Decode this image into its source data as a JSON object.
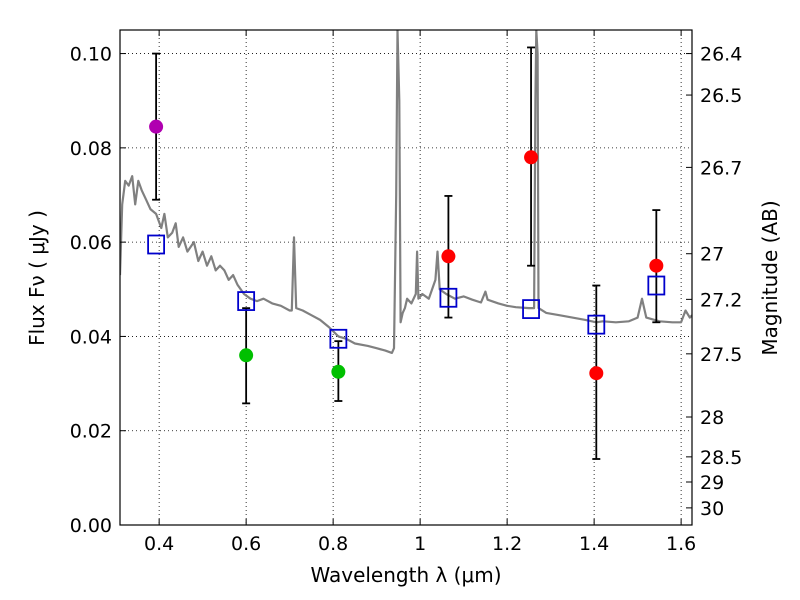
{
  "chart_data": {
    "type": "scatter",
    "xlabel": "Wavelength  λ (μm)",
    "ylabel": "Flux  Fν  ( μJy )",
    "y2label": "Magnitude (AB)",
    "xlim": [
      0.31,
      1.625
    ],
    "ylim": [
      0.0,
      0.105
    ],
    "x_ticks": [
      0.4,
      0.6,
      0.8,
      1.0,
      1.2,
      1.4,
      1.6
    ],
    "x_tick_labels": [
      "0.4",
      "0.6",
      "0.8",
      "1",
      "1.2",
      "1.4",
      "1.6"
    ],
    "y_ticks": [
      0.0,
      0.02,
      0.04,
      0.06,
      0.08,
      0.1
    ],
    "y_tick_labels": [
      "0.00",
      "0.02",
      "0.04",
      "0.06",
      "0.08",
      "0.10"
    ],
    "grid": true,
    "mag_ticks": [
      {
        "mag": 26.4,
        "label": "26.4"
      },
      {
        "mag": 26.5,
        "label": "26.5"
      },
      {
        "mag": 26.7,
        "label": "26.7"
      },
      {
        "mag": 27.0,
        "label": "27"
      },
      {
        "mag": 27.2,
        "label": "27.2"
      },
      {
        "mag": 27.5,
        "label": "27.5"
      },
      {
        "mag": 28.0,
        "label": "28"
      },
      {
        "mag": 28.5,
        "label": "28.5"
      },
      {
        "mag": 29.0,
        "label": "29"
      },
      {
        "mag": 30.0,
        "label": "30"
      }
    ],
    "observed": [
      {
        "x": 0.393,
        "y": 0.0845,
        "ylo": 0.069,
        "yhi": 0.1,
        "color": "#b000b0"
      },
      {
        "x": 0.6,
        "y": 0.036,
        "ylo": 0.0258,
        "yhi": 0.046,
        "color": "#00c000"
      },
      {
        "x": 0.812,
        "y": 0.0325,
        "ylo": 0.0263,
        "yhi": 0.039,
        "color": "#00c000"
      },
      {
        "x": 1.065,
        "y": 0.057,
        "ylo": 0.044,
        "yhi": 0.0698,
        "color": "#ff0000"
      },
      {
        "x": 1.255,
        "y": 0.078,
        "ylo": 0.055,
        "yhi": 0.1013,
        "color": "#ff0000"
      },
      {
        "x": 1.405,
        "y": 0.0322,
        "ylo": 0.014,
        "yhi": 0.0508,
        "color": "#ff0000"
      },
      {
        "x": 1.543,
        "y": 0.055,
        "ylo": 0.043,
        "yhi": 0.0668,
        "color": "#ff0000"
      }
    ],
    "model_photometry": [
      {
        "x": 0.393,
        "y": 0.0595
      },
      {
        "x": 0.6,
        "y": 0.0475
      },
      {
        "x": 0.812,
        "y": 0.0395
      },
      {
        "x": 1.065,
        "y": 0.0482
      },
      {
        "x": 1.255,
        "y": 0.0458
      },
      {
        "x": 1.405,
        "y": 0.0425
      },
      {
        "x": 1.543,
        "y": 0.0508
      }
    ],
    "model_spectrum": {
      "color": "#808080",
      "points": [
        [
          0.31,
          0.053
        ],
        [
          0.315,
          0.068
        ],
        [
          0.322,
          0.073
        ],
        [
          0.33,
          0.072
        ],
        [
          0.338,
          0.074
        ],
        [
          0.345,
          0.068
        ],
        [
          0.352,
          0.073
        ],
        [
          0.36,
          0.071
        ],
        [
          0.37,
          0.069
        ],
        [
          0.38,
          0.067
        ],
        [
          0.393,
          0.066
        ],
        [
          0.405,
          0.063
        ],
        [
          0.412,
          0.066
        ],
        [
          0.42,
          0.061
        ],
        [
          0.43,
          0.062
        ],
        [
          0.438,
          0.064
        ],
        [
          0.445,
          0.059
        ],
        [
          0.455,
          0.061
        ],
        [
          0.465,
          0.058
        ],
        [
          0.48,
          0.06
        ],
        [
          0.49,
          0.056
        ],
        [
          0.5,
          0.058
        ],
        [
          0.51,
          0.055
        ],
        [
          0.52,
          0.057
        ],
        [
          0.53,
          0.054
        ],
        [
          0.54,
          0.055
        ],
        [
          0.55,
          0.054
        ],
        [
          0.56,
          0.052
        ],
        [
          0.57,
          0.053
        ],
        [
          0.58,
          0.051
        ],
        [
          0.595,
          0.049
        ],
        [
          0.61,
          0.048
        ],
        [
          0.625,
          0.0475
        ],
        [
          0.64,
          0.048
        ],
        [
          0.66,
          0.047
        ],
        [
          0.68,
          0.0465
        ],
        [
          0.7,
          0.0455
        ],
        [
          0.705,
          0.0455
        ],
        [
          0.71,
          0.061
        ],
        [
          0.715,
          0.046
        ],
        [
          0.73,
          0.0455
        ],
        [
          0.75,
          0.0445
        ],
        [
          0.77,
          0.0435
        ],
        [
          0.79,
          0.042
        ],
        [
          0.812,
          0.04
        ],
        [
          0.83,
          0.0395
        ],
        [
          0.85,
          0.0385
        ],
        [
          0.88,
          0.038
        ],
        [
          0.9,
          0.0375
        ],
        [
          0.92,
          0.037
        ],
        [
          0.935,
          0.0365
        ],
        [
          0.94,
          0.0375
        ],
        [
          0.945,
          0.07
        ],
        [
          0.948,
          0.105
        ],
        [
          0.952,
          0.09
        ],
        [
          0.955,
          0.043
        ],
        [
          0.96,
          0.045
        ],
        [
          0.965,
          0.046
        ],
        [
          0.97,
          0.048
        ],
        [
          0.98,
          0.047
        ],
        [
          0.99,
          0.049
        ],
        [
          0.993,
          0.058
        ],
        [
          0.996,
          0.048
        ],
        [
          1.005,
          0.049
        ],
        [
          1.02,
          0.048
        ],
        [
          1.035,
          0.052
        ],
        [
          1.04,
          0.058
        ],
        [
          1.045,
          0.05
        ],
        [
          1.06,
          0.049
        ],
        [
          1.08,
          0.048
        ],
        [
          1.1,
          0.0485
        ],
        [
          1.12,
          0.0478
        ],
        [
          1.14,
          0.0472
        ],
        [
          1.15,
          0.0495
        ],
        [
          1.155,
          0.0478
        ],
        [
          1.18,
          0.047
        ],
        [
          1.2,
          0.0465
        ],
        [
          1.22,
          0.0462
        ],
        [
          1.25,
          0.046
        ],
        [
          1.262,
          0.046
        ],
        [
          1.265,
          0.09
        ],
        [
          1.267,
          0.105
        ],
        [
          1.27,
          0.1
        ],
        [
          1.272,
          0.046
        ],
        [
          1.29,
          0.045
        ],
        [
          1.32,
          0.0445
        ],
        [
          1.35,
          0.044
        ],
        [
          1.38,
          0.0435
        ],
        [
          1.405,
          0.043
        ],
        [
          1.42,
          0.0432
        ],
        [
          1.45,
          0.043
        ],
        [
          1.48,
          0.0432
        ],
        [
          1.5,
          0.044
        ],
        [
          1.51,
          0.048
        ],
        [
          1.52,
          0.044
        ],
        [
          1.55,
          0.0432
        ],
        [
          1.58,
          0.043
        ],
        [
          1.6,
          0.043
        ],
        [
          1.61,
          0.0455
        ],
        [
          1.62,
          0.044
        ],
        [
          1.625,
          0.0445
        ]
      ]
    }
  }
}
